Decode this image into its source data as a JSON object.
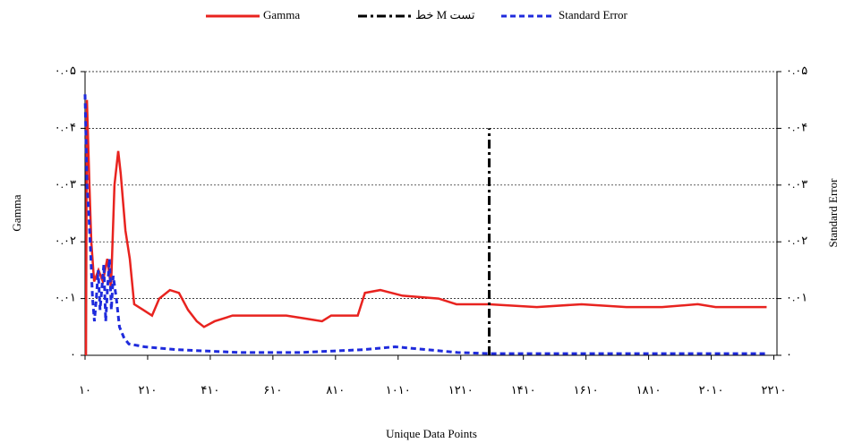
{
  "chart_data": {
    "type": "line",
    "xlabel": "Unique Data Points",
    "ylabel": "Gamma",
    "y2label": "Standard Error",
    "legend": "top",
    "grid": true,
    "xlim": [
      10,
      2220
    ],
    "ylim": [
      0,
      0.05
    ],
    "y2lim": [
      0,
      0.05
    ],
    "xticks": [
      {
        "value": 10,
        "label": "۱۰"
      },
      {
        "value": 210,
        "label": "۲۱۰"
      },
      {
        "value": 410,
        "label": "۴۱۰"
      },
      {
        "value": 610,
        "label": "۶۱۰"
      },
      {
        "value": 810,
        "label": "۸۱۰"
      },
      {
        "value": 1010,
        "label": "۱۰۱۰"
      },
      {
        "value": 1210,
        "label": "۱۲۱۰"
      },
      {
        "value": 1410,
        "label": "۱۴۱۰"
      },
      {
        "value": 1610,
        "label": "۱۶۱۰"
      },
      {
        "value": 1810,
        "label": "۱۸۱۰"
      },
      {
        "value": 2010,
        "label": "۲۰۱۰"
      },
      {
        "value": 2210,
        "label": "۲۲۱۰"
      }
    ],
    "yticks": [
      {
        "value": 0,
        "label": "۰"
      },
      {
        "value": 0.01,
        "label": "۰.۰۱"
      },
      {
        "value": 0.02,
        "label": "۰.۰۲"
      },
      {
        "value": 0.03,
        "label": "۰.۰۳"
      },
      {
        "value": 0.04,
        "label": "۰.۰۴"
      },
      {
        "value": 0.05,
        "label": "۰.۰۵"
      }
    ],
    "y2ticks": [
      {
        "value": 0,
        "label": "۰"
      },
      {
        "value": 0.01,
        "label": "۰.۰۱"
      },
      {
        "value": 0.02,
        "label": "۰.۰۲"
      },
      {
        "value": 0.03,
        "label": "۰.۰۳"
      },
      {
        "value": 0.04,
        "label": "۰.۰۴"
      },
      {
        "value": 0.05,
        "label": "۰.۰۵"
      }
    ],
    "series": [
      {
        "name": "Gamma",
        "color": "#e8231f",
        "dash": "solid",
        "x": [
          13,
          16,
          24,
          30,
          39,
          53,
          67,
          81,
          93,
          104,
          116,
          124,
          139,
          153,
          167,
          196,
          224,
          247,
          281,
          310,
          339,
          367,
          390,
          424,
          481,
          596,
          653,
          710,
          767,
          796,
          881,
          904,
          953,
          1024,
          1139,
          1196,
          1301,
          1453,
          1596,
          1739,
          1853,
          1967,
          2024,
          2187
        ],
        "values": [
          0,
          0.045,
          0.03,
          0.02,
          0.013,
          0.015,
          0.013,
          0.017,
          0.012,
          0.03,
          0.036,
          0.032,
          0.022,
          0.017,
          0.009,
          0.008,
          0.007,
          0.01,
          0.0115,
          0.011,
          0.008,
          0.006,
          0.005,
          0.006,
          0.007,
          0.007,
          0.007,
          0.0065,
          0.006,
          0.007,
          0.007,
          0.011,
          0.0115,
          0.0105,
          0.01,
          0.009,
          0.009,
          0.0085,
          0.009,
          0.0085,
          0.0085,
          0.009,
          0.0085,
          0.0085
        ]
      },
      {
        "name": "خط M تست",
        "color": "#000000",
        "dash": "dashdot",
        "x": [
          1301,
          1301
        ],
        "values": [
          0,
          0.04
        ]
      },
      {
        "name": "Standard Error",
        "color": "#1f2bdc",
        "dash": "dash",
        "axis": "y2",
        "x": [
          10,
          16,
          22,
          28,
          34,
          40,
          46,
          52,
          58,
          64,
          70,
          76,
          82,
          88,
          94,
          100,
          110,
          120,
          135,
          150,
          200,
          300,
          500,
          700,
          900,
          1000,
          1100,
          1200,
          1301,
          1500,
          2000,
          2187
        ],
        "values": [
          0.046,
          0.03,
          0.025,
          0.018,
          0.01,
          0.006,
          0.01,
          0.015,
          0.008,
          0.012,
          0.016,
          0.006,
          0.012,
          0.017,
          0.008,
          0.014,
          0.01,
          0.005,
          0.003,
          0.002,
          0.0015,
          0.001,
          0.0005,
          0.0005,
          0.001,
          0.0015,
          0.001,
          0.0005,
          0.0003,
          0.0003,
          0.0003,
          0.0003
        ]
      }
    ]
  }
}
